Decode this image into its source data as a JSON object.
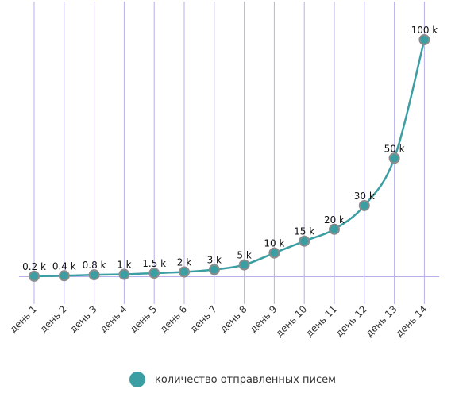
{
  "colors": {
    "line": "#3a9ea3",
    "marker_fill": "#3a9ea3",
    "marker_stroke": "#8c8c8c",
    "grid": "#b7b0ea",
    "baseline": "#b7b0ea"
  },
  "chart_data": {
    "type": "line",
    "categories": [
      "день 1",
      "день 2",
      "день 3",
      "день 4",
      "день 5",
      "день 6",
      "день 7",
      "день 8",
      "день 9",
      "день 10",
      "день 11",
      "день 12",
      "день 13",
      "день 14"
    ],
    "series": [
      {
        "name": "количество отправленных писем",
        "values": [
          200,
          400,
          800,
          1000,
          1500,
          2000,
          3000,
          5000,
          10000,
          15000,
          20000,
          30000,
          50000,
          100000
        ],
        "labels": [
          "0.2 k",
          "0.4 k",
          "0.8 k",
          "1 k",
          "1.5 k",
          "2 k",
          "3 k",
          "5 k",
          "10 k",
          "15 k",
          "20 k",
          "30 k",
          "50 k",
          "100 k"
        ]
      }
    ],
    "ylim": [
      0,
      100000
    ],
    "grid": "vertical",
    "legend_position": "bottom",
    "smooth": true
  }
}
